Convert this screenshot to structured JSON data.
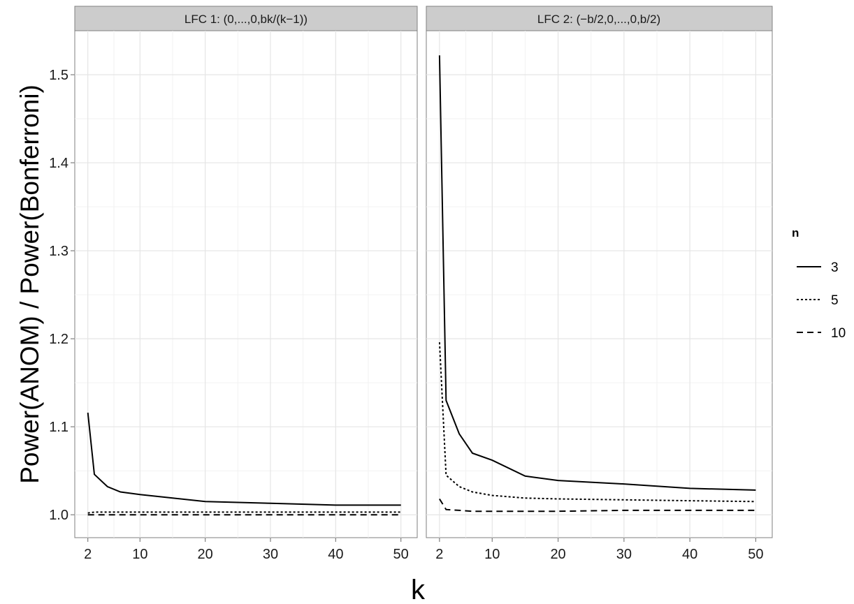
{
  "chart_data": {
    "type": "line",
    "xlabel": "k",
    "ylabel": "Power(ANOM) / Power(Bonferroni)",
    "xlim": [
      0,
      52.5
    ],
    "ylim": [
      0.974,
      1.55
    ],
    "x_ticks": [
      2,
      10,
      20,
      30,
      40,
      50
    ],
    "x_tick_labels": [
      "2",
      "10",
      "20",
      "30",
      "40",
      "50"
    ],
    "y_ticks": [
      1.0,
      1.1,
      1.2,
      1.3,
      1.4,
      1.5
    ],
    "y_tick_labels": [
      "1.0",
      "1.1",
      "1.2",
      "1.3",
      "1.4",
      "1.5"
    ],
    "grid": true,
    "legend": {
      "title": "n",
      "position": "right",
      "entries": [
        {
          "label": "3",
          "dash": "solid"
        },
        {
          "label": "5",
          "dash": "dotted"
        },
        {
          "label": "10",
          "dash": "dashed"
        }
      ]
    },
    "panels": [
      {
        "title": "LFC 1: (0,...,0,bk/(k−1))",
        "series": [
          {
            "name": "3",
            "x": [
              2,
              3,
              5,
              7,
              10,
              15,
              20,
              30,
              40,
              50
            ],
            "y": [
              1.116,
              1.046,
              1.032,
              1.026,
              1.023,
              1.019,
              1.015,
              1.013,
              1.011,
              1.011
            ]
          },
          {
            "name": "5",
            "x": [
              2,
              3,
              5,
              7,
              10,
              15,
              20,
              30,
              40,
              50
            ],
            "y": [
              1.002,
              1.003,
              1.003,
              1.003,
              1.003,
              1.003,
              1.003,
              1.003,
              1.003,
              1.003
            ]
          },
          {
            "name": "10",
            "x": [
              2,
              3,
              5,
              7,
              10,
              15,
              20,
              30,
              40,
              50
            ],
            "y": [
              1.0,
              1.0,
              1.0,
              1.0,
              1.0,
              1.0,
              1.0,
              1.0,
              1.0,
              1.0
            ]
          }
        ]
      },
      {
        "title": "LFC 2: (−b/2,0,...,0,b/2)",
        "series": [
          {
            "name": "3",
            "x": [
              2,
              3,
              5,
              7,
              10,
              15,
              20,
              30,
              40,
              50
            ],
            "y": [
              1.522,
              1.13,
              1.092,
              1.07,
              1.062,
              1.044,
              1.039,
              1.035,
              1.03,
              1.028
            ]
          },
          {
            "name": "5",
            "x": [
              2,
              3,
              5,
              7,
              10,
              15,
              20,
              30,
              40,
              50
            ],
            "y": [
              1.196,
              1.045,
              1.032,
              1.026,
              1.022,
              1.019,
              1.018,
              1.017,
              1.016,
              1.015
            ]
          },
          {
            "name": "10",
            "x": [
              2,
              3,
              5,
              7,
              10,
              15,
              20,
              30,
              40,
              50
            ],
            "y": [
              1.018,
              1.006,
              1.005,
              1.004,
              1.004,
              1.004,
              1.004,
              1.005,
              1.005,
              1.005
            ]
          }
        ]
      }
    ]
  }
}
